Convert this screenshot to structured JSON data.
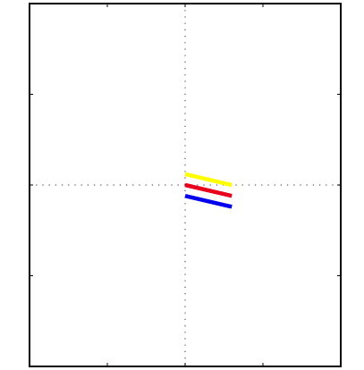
{
  "chart_data": {
    "type": "line",
    "title": "",
    "xlabel": "",
    "ylabel": "",
    "xlim": [
      -2,
      2
    ],
    "ylim": [
      -2,
      2
    ],
    "grid": "crosshair-dotted",
    "x_ticks": [
      -2,
      -1,
      0,
      1,
      2
    ],
    "y_ticks": [
      -2,
      -1,
      0,
      1,
      2
    ],
    "series": [
      {
        "color": "#ffff00",
        "x": [
          0,
          0.6
        ],
        "y": [
          0.12,
          0.0
        ]
      },
      {
        "color": "#e8001c",
        "x": [
          0,
          0.6
        ],
        "y": [
          0.0,
          -0.12
        ]
      },
      {
        "color": "#0000ee",
        "x": [
          0,
          0.6
        ],
        "y": [
          -0.12,
          -0.24
        ]
      }
    ]
  }
}
